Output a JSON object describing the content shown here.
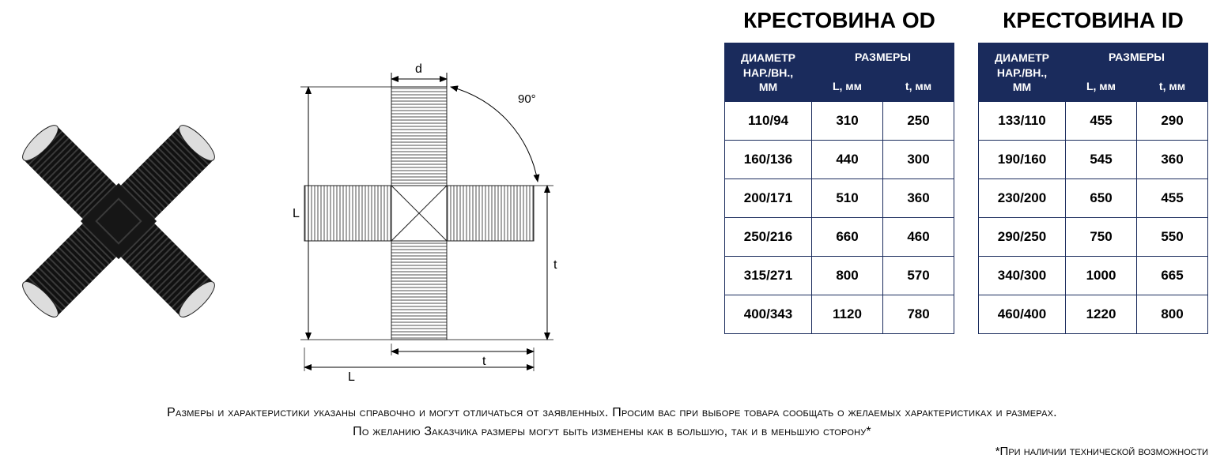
{
  "colors": {
    "header_bg": "#1a2b5c",
    "header_text": "#ffffff",
    "border": "#1a2b5c",
    "cell_bg": "#ffffff",
    "cell_text": "#000000",
    "page_bg": "#ffffff"
  },
  "typography": {
    "title_fontsize": 28,
    "header_fontsize": 14,
    "cell_fontsize": 17,
    "footer_fontsize": 16,
    "font_family": "Arial"
  },
  "diagram": {
    "labels": {
      "d": "d",
      "L_v": "L",
      "L_h": "L",
      "t": "t",
      "t_v": "t",
      "angle": "90°"
    }
  },
  "table_od": {
    "title": "КРЕСТОВИНА OD",
    "col_diam": "ДИАМЕТР НАР./ВН., ММ",
    "col_sizes": "РАЗМЕРЫ",
    "col_L": "L, мм",
    "col_t": "t, мм",
    "rows": [
      {
        "d": "110/94",
        "L": "310",
        "t": "250"
      },
      {
        "d": "160/136",
        "L": "440",
        "t": "300"
      },
      {
        "d": "200/171",
        "L": "510",
        "t": "360"
      },
      {
        "d": "250/216",
        "L": "660",
        "t": "460"
      },
      {
        "d": "315/271",
        "L": "800",
        "t": "570"
      },
      {
        "d": "400/343",
        "L": "1120",
        "t": "780"
      }
    ]
  },
  "table_id": {
    "title": "КРЕСТОВИНА ID",
    "col_diam": "ДИАМЕТР НАР./ВН., ММ",
    "col_sizes": "РАЗМЕРЫ",
    "col_L": "L, мм",
    "col_t": "t, мм",
    "rows": [
      {
        "d": "133/110",
        "L": "455",
        "t": "290"
      },
      {
        "d": "190/160",
        "L": "545",
        "t": "360"
      },
      {
        "d": "230/200",
        "L": "650",
        "t": "455"
      },
      {
        "d": "290/250",
        "L": "750",
        "t": "550"
      },
      {
        "d": "340/300",
        "L": "1000",
        "t": "665"
      },
      {
        "d": "460/400",
        "L": "1220",
        "t": "800"
      }
    ]
  },
  "footer": {
    "line1": "Размеры и характеристики указаны справочно и могут отличаться от заявленных. Просим вас при выборе товара сообщать о желаемых характеристиках и размерах.",
    "line2": "По желанию Заказчика размеры могут быть изменены как в большую, так и в меньшую сторону*",
    "note": "*При наличии технической возможности"
  }
}
